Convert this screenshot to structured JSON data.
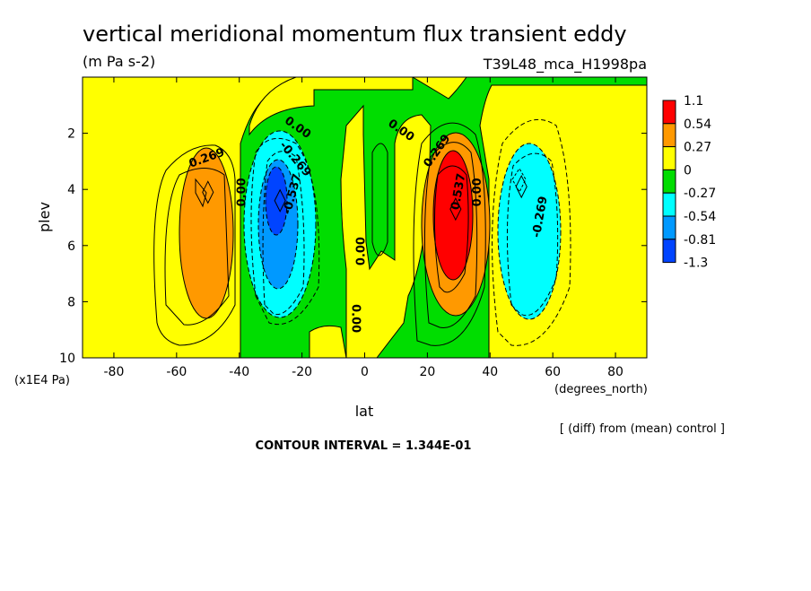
{
  "chart_data": {
    "type": "heatmap",
    "title": "vertical meridional momentum flux transient eddy",
    "units": "(m Pa s-2)",
    "run_label": "T39L48_mca_H1998pa",
    "xlabel": "lat",
    "x_units": "(degrees_north)",
    "ylabel": "plev",
    "y_units": "(x1E4 Pa)",
    "footer": "[ (diff) from (mean) control ]",
    "contour_interval": "CONTOUR INTERVAL = 1.344E-01",
    "xlim": [
      -90,
      90
    ],
    "ylim": [
      10,
      0
    ],
    "x_ticks": [
      -80,
      -60,
      -40,
      -20,
      0,
      20,
      40,
      60,
      80
    ],
    "x_tick_labels": [
      "-80",
      "-60",
      "-40",
      "-20",
      "0",
      "20",
      "40",
      "60",
      "80"
    ],
    "y_ticks": [
      2,
      4,
      6,
      8,
      10
    ],
    "y_tick_labels": [
      "2",
      "4",
      "6",
      "8",
      "10"
    ],
    "colorbar": {
      "labels": [
        "1.1",
        "0.54",
        "0.27",
        "0",
        "-0.27",
        "-0.54",
        "-0.81",
        "-1.3"
      ],
      "colors": [
        "#ff0000",
        "#ff9900",
        "#ffff00",
        "#00dd00",
        "#00ffff",
        "#0099ff",
        "#0044ff"
      ]
    },
    "contour_labels": [
      {
        "text": "0.269",
        "lat": -50,
        "plev": 3.0,
        "angle": -20
      },
      {
        "text": "0.00",
        "lat": -38,
        "plev": 4.1,
        "angle": -90
      },
      {
        "text": "0.00",
        "lat": -22,
        "plev": 1.9,
        "angle": 35
      },
      {
        "text": "-0.269",
        "lat": -23,
        "plev": 3.0,
        "angle": 50
      },
      {
        "text": "-0.537",
        "lat": -22,
        "plev": 4.2,
        "angle": -75
      },
      {
        "text": "0.00",
        "lat": 0,
        "plev": 6.2,
        "angle": -90
      },
      {
        "text": "0.00",
        "lat": -4,
        "plev": 8.6,
        "angle": 90
      },
      {
        "text": "0.00",
        "lat": 11,
        "plev": 2.0,
        "angle": 35
      },
      {
        "text": "0.269",
        "lat": 24,
        "plev": 2.7,
        "angle": -55
      },
      {
        "text": "0.537",
        "lat": 31,
        "plev": 4.1,
        "angle": -80
      },
      {
        "text": "0.00",
        "lat": 37,
        "plev": 4.1,
        "angle": -90
      },
      {
        "text": "-0.269",
        "lat": 57,
        "plev": 5.0,
        "angle": -80
      }
    ],
    "extrema": [
      {
        "type": "max",
        "lat": -50,
        "plev": 4.1,
        "value": 0.35
      },
      {
        "type": "min",
        "lat": -27,
        "plev": 4.4,
        "value": -1.0
      },
      {
        "type": "max",
        "lat": 29,
        "plev": 4.7,
        "value": 1.0
      },
      {
        "type": "min",
        "lat": 50,
        "plev": 3.9,
        "value": -0.4
      }
    ]
  }
}
